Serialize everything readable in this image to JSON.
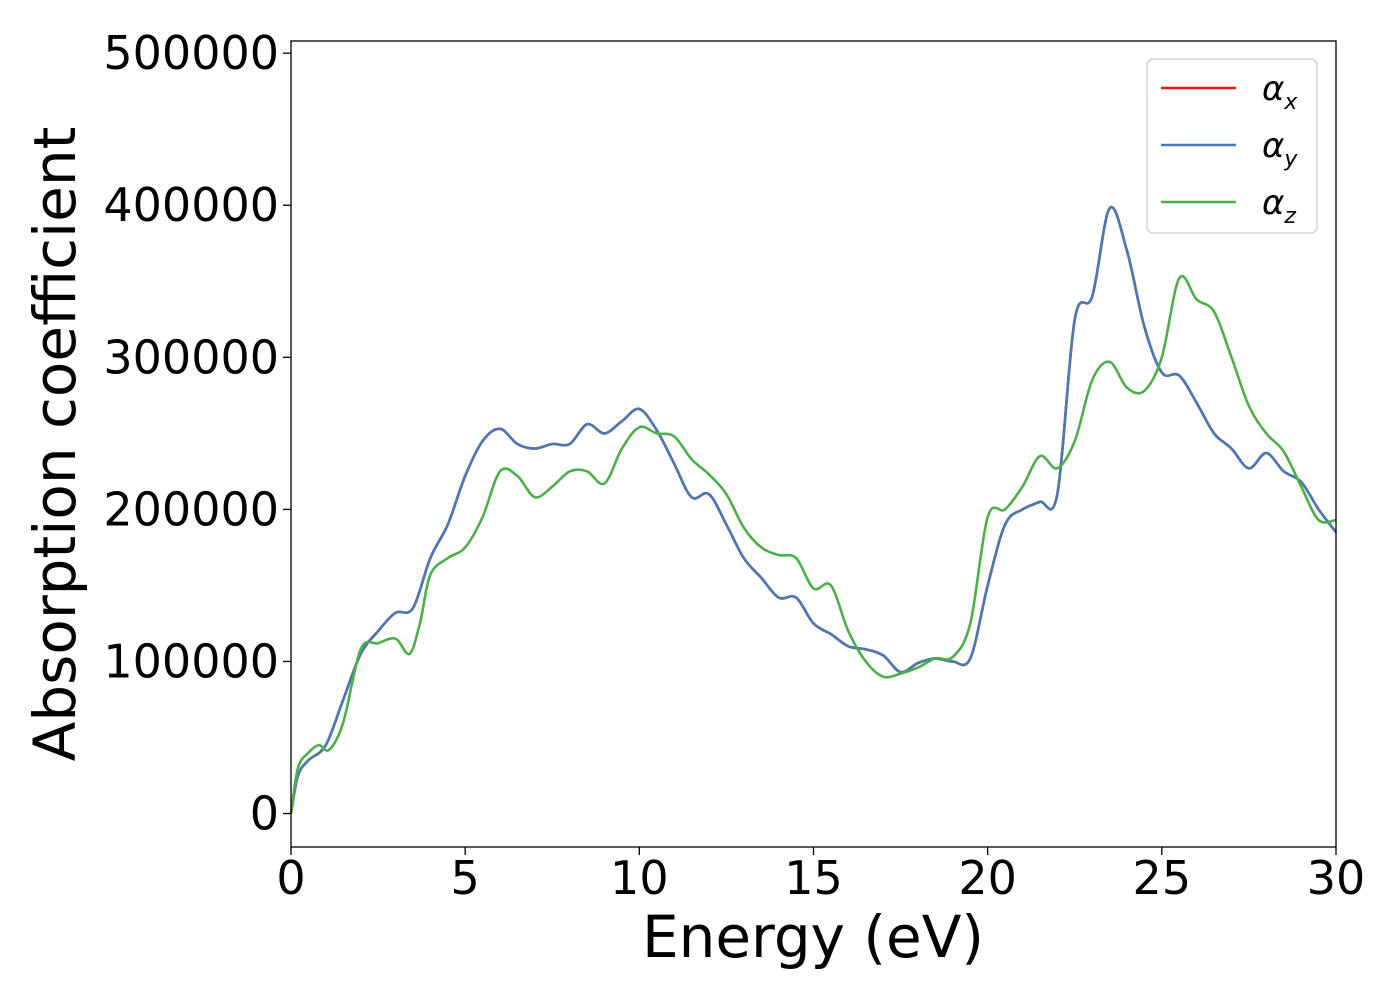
{
  "chart_data": {
    "type": "line",
    "title": "",
    "xlabel": "Energy (eV)",
    "ylabel": "Absorption coefficient",
    "xlim": [
      0,
      30
    ],
    "ylim": [
      -22000,
      508000
    ],
    "xticks": [
      "0",
      "5",
      "10",
      "15",
      "20",
      "25",
      "30"
    ],
    "yticks": [
      "0",
      "100000",
      "200000",
      "300000",
      "400000",
      "500000"
    ],
    "grid": false,
    "legend": "top-right",
    "colors": {
      "alpha_x": "#e41a1c",
      "alpha_y": "#4a7ab5",
      "alpha_z": "#4daf4a"
    },
    "series": [
      {
        "name": "α_x",
        "symbol": "α",
        "sub": "x",
        "color": "#e41a1c",
        "x": [
          0,
          0.2,
          0.5,
          1,
          1.5,
          2,
          2.5,
          3,
          3.5,
          4,
          4.5,
          5,
          5.5,
          6,
          6.5,
          7,
          7.5,
          8,
          8.5,
          9,
          9.5,
          10,
          10.5,
          11,
          11.5,
          12,
          12.5,
          13,
          13.5,
          14,
          14.5,
          15,
          15.5,
          16,
          16.5,
          17,
          17.5,
          18,
          18.5,
          19,
          19.5,
          20,
          20.5,
          21,
          21.5,
          22,
          22.5,
          23,
          23.5,
          24,
          24.5,
          25,
          25.5,
          26,
          26.5,
          27,
          27.5,
          28,
          28.5,
          29,
          29.5,
          30
        ],
        "y": [
          0,
          25000,
          35000,
          45000,
          75000,
          105000,
          120000,
          132000,
          135000,
          168000,
          190000,
          222000,
          245000,
          253000,
          243000,
          240000,
          243000,
          243000,
          256000,
          250000,
          258000,
          266000,
          252000,
          230000,
          208000,
          210000,
          190000,
          168000,
          155000,
          142000,
          142000,
          125000,
          118000,
          110000,
          108000,
          104000,
          93000,
          99000,
          102000,
          100000,
          102000,
          150000,
          190000,
          200000,
          205000,
          210000,
          325000,
          340000,
          398000,
          370000,
          320000,
          290000,
          288000,
          270000,
          250000,
          240000,
          227000,
          237000,
          225000,
          218000,
          200000,
          185000
        ]
      },
      {
        "name": "α_y",
        "symbol": "α",
        "sub": "y",
        "color": "#4a7ab5",
        "x": [
          0,
          0.2,
          0.5,
          1,
          1.5,
          2,
          2.5,
          3,
          3.5,
          4,
          4.5,
          5,
          5.5,
          6,
          6.5,
          7,
          7.5,
          8,
          8.5,
          9,
          9.5,
          10,
          10.5,
          11,
          11.5,
          12,
          12.5,
          13,
          13.5,
          14,
          14.5,
          15,
          15.5,
          16,
          16.5,
          17,
          17.5,
          18,
          18.5,
          19,
          19.5,
          20,
          20.5,
          21,
          21.5,
          22,
          22.5,
          23,
          23.5,
          24,
          24.5,
          25,
          25.5,
          26,
          26.5,
          27,
          27.5,
          28,
          28.5,
          29,
          29.5,
          30
        ],
        "y": [
          0,
          25000,
          35000,
          45000,
          75000,
          105000,
          120000,
          132000,
          135000,
          168000,
          190000,
          222000,
          245000,
          253000,
          243000,
          240000,
          243000,
          243000,
          256000,
          250000,
          258000,
          266000,
          252000,
          230000,
          208000,
          210000,
          190000,
          168000,
          155000,
          142000,
          142000,
          125000,
          118000,
          110000,
          108000,
          104000,
          93000,
          99000,
          102000,
          100000,
          102000,
          150000,
          190000,
          200000,
          205000,
          210000,
          325000,
          340000,
          398000,
          370000,
          320000,
          290000,
          288000,
          270000,
          250000,
          240000,
          227000,
          237000,
          225000,
          218000,
          200000,
          185000
        ]
      },
      {
        "name": "α_z",
        "symbol": "α",
        "sub": "z",
        "color": "#4daf4a",
        "x": [
          0,
          0.2,
          0.5,
          0.8,
          1.1,
          1.5,
          2,
          2.5,
          3,
          3.4,
          3.7,
          4,
          4.5,
          5,
          5.5,
          6,
          6.5,
          7,
          7.5,
          8,
          8.5,
          9,
          9.5,
          10,
          10.5,
          11,
          11.5,
          12,
          12.5,
          13,
          13.5,
          14,
          14.5,
          15,
          15.5,
          16,
          16.5,
          17,
          17.5,
          18,
          18.5,
          19,
          19.5,
          20,
          20.5,
          21,
          21.5,
          22,
          22.5,
          23,
          23.5,
          24,
          24.5,
          25,
          25.5,
          26,
          26.5,
          27,
          27.5,
          28,
          28.5,
          29,
          29.5,
          30
        ],
        "y": [
          0,
          30000,
          40000,
          45000,
          42000,
          60000,
          108000,
          112000,
          115000,
          105000,
          125000,
          157000,
          168000,
          175000,
          195000,
          225000,
          222000,
          208000,
          215000,
          225000,
          225000,
          217000,
          240000,
          254000,
          250000,
          248000,
          233000,
          223000,
          210000,
          188000,
          175000,
          170000,
          168000,
          148000,
          150000,
          120000,
          100000,
          90000,
          92000,
          96000,
          102000,
          103000,
          125000,
          195000,
          200000,
          215000,
          235000,
          227000,
          245000,
          285000,
          297000,
          280000,
          278000,
          300000,
          352000,
          338000,
          330000,
          300000,
          268000,
          250000,
          238000,
          215000,
          193000,
          193000
        ]
      }
    ]
  }
}
